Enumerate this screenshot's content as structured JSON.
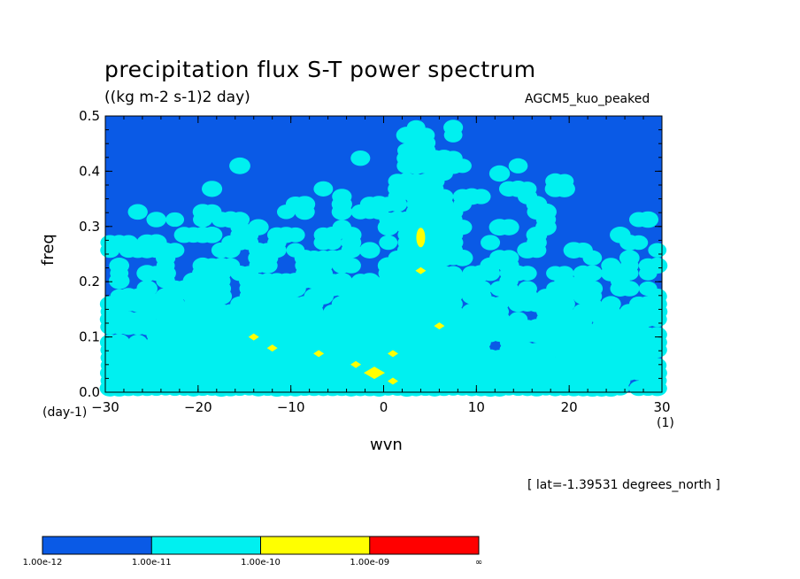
{
  "chart_data": {
    "type": "heatmap",
    "title": "precipitation flux S-T power spectrum",
    "units": "((kg m-2 s-1)2 day)",
    "model_label": "AGCM5_kuo_peaked",
    "annotation": "[ lat=-1.39531 degrees_north ]",
    "xlabel": "wvn",
    "ylabel": "freq",
    "x_unit": "(1)",
    "y_unit": "(day-1)",
    "xlim": [
      -30,
      30
    ],
    "ylim": [
      0,
      0.5
    ],
    "x_ticks": [
      -30,
      -20,
      -10,
      0,
      10,
      20,
      30
    ],
    "x_tick_labels": [
      "−30",
      "−20",
      "−10",
      "0",
      "10",
      "20",
      "30"
    ],
    "y_ticks": [
      0,
      0.1,
      0.2,
      0.3,
      0.4,
      0.5
    ],
    "y_tick_labels": [
      "0.0",
      "0.1",
      "0.2",
      "0.3",
      "0.4",
      "0.5"
    ],
    "levels": [
      "1.00e-12",
      "1.00e-11",
      "1.00e-10",
      "1.00e-09",
      "∞"
    ],
    "level_colors": [
      "#0a5ae6",
      "#00f0f0",
      "#ffff00",
      "#ff0000"
    ],
    "high_points": [
      {
        "x": 4,
        "y": 0.28
      },
      {
        "x": -1,
        "y": 0.035
      },
      {
        "x": 1,
        "y": 0.07
      },
      {
        "x": 4,
        "y": 0.22
      },
      {
        "x": -7,
        "y": 0.07
      },
      {
        "x": -12,
        "y": 0.08
      },
      {
        "x": -14,
        "y": 0.1
      },
      {
        "x": 1,
        "y": 0.02
      },
      {
        "x": -3,
        "y": 0.05
      },
      {
        "x": 6,
        "y": 0.12
      }
    ]
  }
}
